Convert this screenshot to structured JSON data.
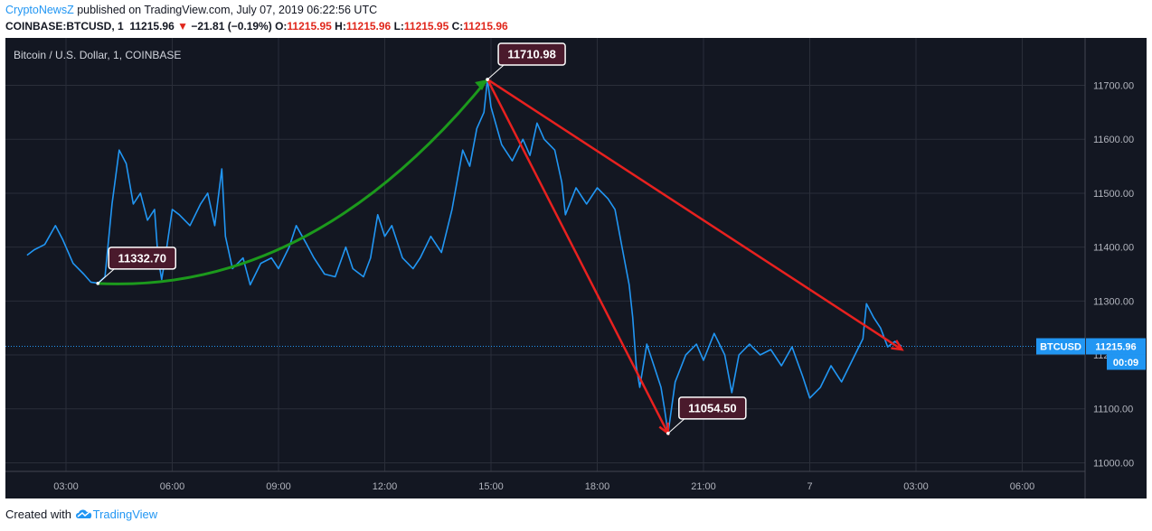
{
  "header": {
    "publisher": "CryptoNewsZ",
    "published_text": "published on TradingView.com, July 07, 2019 06:22:56 UTC",
    "symbol": "COINBASE:BTCUSD, 1",
    "last": "11215.96",
    "change_arrow": "▼",
    "change": "−21.81 (−0.19%)",
    "o_label": "O:",
    "o_value": "11215.95",
    "h_label": "H:",
    "h_value": "11215.96",
    "l_label": "L:",
    "l_value": "11215.95",
    "c_label": "C:",
    "c_value": "11215.96"
  },
  "footer": {
    "created_with": "Created with",
    "brand": "TradingView",
    "brand_icon": "tradingview-cloud-icon"
  },
  "colors": {
    "background": "#131722",
    "price_line": "#2196f3",
    "up_curve": "#1c9a1c",
    "down_lines": "#e8211f",
    "callout_fill": "#4a1a2c",
    "axis_text": "#b2b5be",
    "price_tag": "#2196f3"
  },
  "chart_data": {
    "type": "line",
    "title": "Bitcoin / U.S. Dollar, 1, COINBASE",
    "xlabel": "",
    "ylabel": "",
    "x_ticks": [
      "03:00",
      "06:00",
      "09:00",
      "12:00",
      "15:00",
      "18:00",
      "21:00",
      "7",
      "03:00",
      "06:00"
    ],
    "y_ticks": [
      11000,
      11100,
      11200,
      11300,
      11400,
      11500,
      11600,
      11700
    ],
    "ylim": [
      10984,
      11788
    ],
    "grid": true,
    "series": [
      {
        "name": "BTCUSD",
        "points": [
          [
            -1.1,
            11385
          ],
          [
            -0.9,
            11395
          ],
          [
            -0.6,
            11405
          ],
          [
            -0.3,
            11440
          ],
          [
            -0.1,
            11415
          ],
          [
            0.2,
            11370
          ],
          [
            0.5,
            11350
          ],
          [
            0.7,
            11335
          ],
          [
            0.9,
            11333
          ],
          [
            1.1,
            11345
          ],
          [
            1.3,
            11480
          ],
          [
            1.5,
            11580
          ],
          [
            1.7,
            11555
          ],
          [
            1.9,
            11480
          ],
          [
            2.1,
            11500
          ],
          [
            2.3,
            11450
          ],
          [
            2.5,
            11470
          ],
          [
            2.6,
            11380
          ],
          [
            2.7,
            11340
          ],
          [
            2.8,
            11380
          ],
          [
            3.0,
            11470
          ],
          [
            3.2,
            11460
          ],
          [
            3.5,
            11440
          ],
          [
            3.8,
            11480
          ],
          [
            4.0,
            11500
          ],
          [
            4.2,
            11440
          ],
          [
            4.4,
            11545
          ],
          [
            4.5,
            11420
          ],
          [
            4.7,
            11360
          ],
          [
            5.0,
            11380
          ],
          [
            5.2,
            11330
          ],
          [
            5.5,
            11370
          ],
          [
            5.8,
            11380
          ],
          [
            6.0,
            11360
          ],
          [
            6.3,
            11400
          ],
          [
            6.5,
            11440
          ],
          [
            6.8,
            11405
          ],
          [
            7.0,
            11380
          ],
          [
            7.3,
            11350
          ],
          [
            7.6,
            11345
          ],
          [
            7.9,
            11400
          ],
          [
            8.1,
            11360
          ],
          [
            8.4,
            11345
          ],
          [
            8.6,
            11380
          ],
          [
            8.8,
            11460
          ],
          [
            9.0,
            11420
          ],
          [
            9.2,
            11440
          ],
          [
            9.5,
            11380
          ],
          [
            9.8,
            11360
          ],
          [
            10.0,
            11380
          ],
          [
            10.3,
            11420
          ],
          [
            10.6,
            11390
          ],
          [
            10.9,
            11470
          ],
          [
            11.2,
            11580
          ],
          [
            11.4,
            11550
          ],
          [
            11.6,
            11620
          ],
          [
            11.8,
            11650
          ],
          [
            11.9,
            11710.98
          ],
          [
            12.0,
            11660
          ],
          [
            12.3,
            11590
          ],
          [
            12.6,
            11560
          ],
          [
            12.9,
            11600
          ],
          [
            13.1,
            11570
          ],
          [
            13.3,
            11630
          ],
          [
            13.5,
            11600
          ],
          [
            13.8,
            11580
          ],
          [
            14.0,
            11520
          ],
          [
            14.1,
            11460
          ],
          [
            14.4,
            11510
          ],
          [
            14.7,
            11480
          ],
          [
            15.0,
            11510
          ],
          [
            15.3,
            11490
          ],
          [
            15.5,
            11470
          ],
          [
            15.7,
            11400
          ],
          [
            15.9,
            11330
          ],
          [
            16.0,
            11270
          ],
          [
            16.1,
            11180
          ],
          [
            16.2,
            11140
          ],
          [
            16.4,
            11220
          ],
          [
            16.6,
            11180
          ],
          [
            16.8,
            11140
          ],
          [
            16.9,
            11100
          ],
          [
            17.0,
            11054.5
          ],
          [
            17.2,
            11150
          ],
          [
            17.5,
            11200
          ],
          [
            17.8,
            11220
          ],
          [
            18.0,
            11190
          ],
          [
            18.3,
            11240
          ],
          [
            18.6,
            11200
          ],
          [
            18.8,
            11130
          ],
          [
            19.0,
            11200
          ],
          [
            19.3,
            11220
          ],
          [
            19.6,
            11200
          ],
          [
            19.9,
            11210
          ],
          [
            20.2,
            11180
          ],
          [
            20.5,
            11215
          ],
          [
            20.8,
            11160
          ],
          [
            21.0,
            11120
          ],
          [
            21.3,
            11140
          ],
          [
            21.6,
            11180
          ],
          [
            21.9,
            11150
          ],
          [
            22.2,
            11190
          ],
          [
            22.5,
            11230
          ],
          [
            22.6,
            11295
          ],
          [
            22.8,
            11270
          ],
          [
            23.0,
            11250
          ],
          [
            23.2,
            11215
          ],
          [
            23.4,
            11225
          ],
          [
            23.6,
            11215.96
          ]
        ]
      }
    ],
    "last_price_tag": {
      "series_label": "BTCUSD",
      "value": "11215.96",
      "countdown": "00:09"
    },
    "annotations": [
      {
        "type": "label",
        "text": "11332.70",
        "x": 0.9,
        "y": 11332.7
      },
      {
        "type": "label",
        "text": "11710.98",
        "x": 11.9,
        "y": 11710.98
      },
      {
        "type": "label",
        "text": "11054.50",
        "x": 17.0,
        "y": 11054.5
      },
      {
        "type": "curve-arrow",
        "color": "green",
        "from": [
          0.9,
          11332.7
        ],
        "to": [
          11.9,
          11710.98
        ]
      },
      {
        "type": "arrow",
        "color": "red",
        "from": [
          11.9,
          11710.98
        ],
        "to": [
          17.0,
          11054.5
        ]
      },
      {
        "type": "arrow",
        "color": "red",
        "from": [
          11.9,
          11710.98
        ],
        "to": [
          23.6,
          11210
        ]
      }
    ]
  }
}
